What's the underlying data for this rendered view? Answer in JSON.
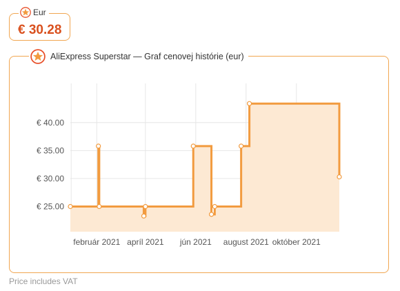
{
  "currency_label": "Eur",
  "current_price": "€ 30.28",
  "chart_title": "AliExpress Superstar — Graf cenovej histórie (eur)",
  "footer_note": "Price includes VAT",
  "icons": {
    "badge": "star-badge-icon"
  },
  "colors": {
    "accent": "#f29b3f",
    "fill": "#fde9d3",
    "price_text": "#d9501e",
    "border": "#f1a650"
  },
  "chart_data": {
    "type": "area",
    "title": "AliExpress Superstar — Graf cenovej histórie (eur)",
    "xlabel": "",
    "ylabel": "",
    "ylim": [
      20.5,
      47.0
    ],
    "xlim": [
      "2020-12-31",
      "2021-11-22"
    ],
    "grid": true,
    "y_ticks": [
      25,
      30,
      35,
      40
    ],
    "y_tick_labels": [
      "€ 25.00",
      "€ 30.00",
      "€ 35.00",
      "€ 40.00"
    ],
    "x_ticks": [
      "2021-02-01",
      "2021-04-01",
      "2021-06-01",
      "2021-08-01",
      "2021-10-01"
    ],
    "x_tick_labels": [
      "február 2021",
      "apríl 2021",
      "jún 2021",
      "august 2021",
      "október 2021"
    ],
    "x_grid": [
      "2021-01-01",
      "2021-02-01",
      "2021-04-01",
      "2021-06-01",
      "2021-08-01",
      "2021-10-01"
    ],
    "series": [
      {
        "step": "after",
        "points": [
          {
            "date": "2020-12-31",
            "price": 25.0
          },
          {
            "date": "2021-02-03",
            "price": 35.8
          },
          {
            "date": "2021-02-04",
            "price": 25.0
          },
          {
            "date": "2021-03-30",
            "price": 23.3
          },
          {
            "date": "2021-04-01",
            "price": 25.0
          },
          {
            "date": "2021-05-29",
            "price": 35.8
          },
          {
            "date": "2021-06-20",
            "price": 23.6
          },
          {
            "date": "2021-06-24",
            "price": 25.0
          },
          {
            "date": "2021-07-26",
            "price": 35.8
          },
          {
            "date": "2021-08-05",
            "price": 43.4
          },
          {
            "date": "2021-11-22",
            "price": 30.3
          }
        ]
      }
    ]
  }
}
